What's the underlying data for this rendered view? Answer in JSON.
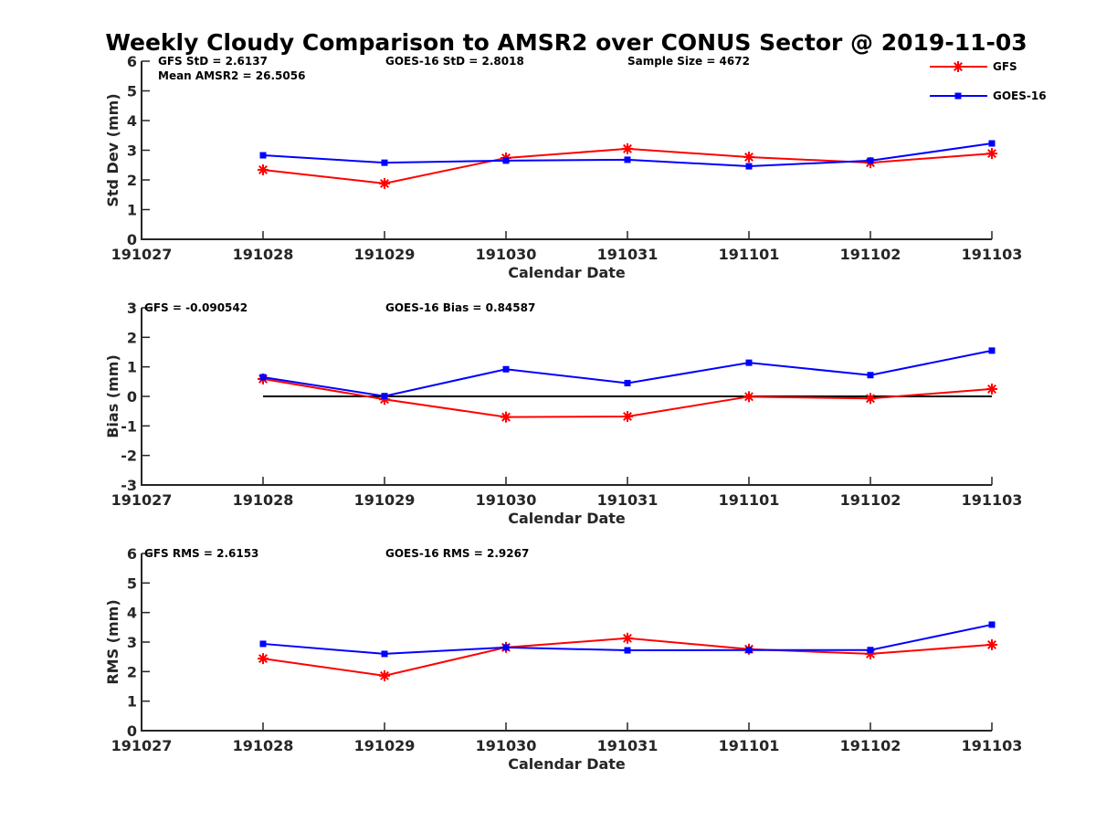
{
  "chart_data": {
    "type": "line",
    "title": "Weekly Cloudy Comparison to AMSR2 over CONUS Sector @ 2019-11-03",
    "x_tick_labels": [
      "191027",
      "191028",
      "191029",
      "191030",
      "191031",
      "191101",
      "191102",
      "191103"
    ],
    "x": [
      "191028",
      "191029",
      "191030",
      "191031",
      "191101",
      "191102",
      "191103"
    ],
    "legend": {
      "placement": "top-right",
      "entries": [
        {
          "name": "GFS",
          "color": "#ff0000",
          "marker": "asterisk"
        },
        {
          "name": "GOES-16",
          "color": "#0000ff",
          "marker": "square"
        }
      ]
    },
    "panels": [
      {
        "id": "stddev",
        "xlabel": "Calendar Date",
        "ylabel": "Std Dev (mm)",
        "ylim": [
          0,
          6
        ],
        "yticks": [
          0,
          1,
          2,
          3,
          4,
          5,
          6
        ],
        "zero_line": false,
        "annotations": [
          {
            "text": "GFS StD = 2.6137",
            "pos": "top-left"
          },
          {
            "text": "Mean AMSR2 = 26.5056",
            "pos": "top-left-line2"
          },
          {
            "text": "GOES-16 StD = 2.8018",
            "pos": "top-center"
          },
          {
            "text": "Sample Size = 4672",
            "pos": "top-right"
          }
        ],
        "series": [
          {
            "name": "GFS",
            "values": [
              2.34,
              1.88,
              2.74,
              3.05,
              2.77,
              2.58,
              2.89
            ]
          },
          {
            "name": "GOES-16",
            "values": [
              2.83,
              2.58,
              2.65,
              2.68,
              2.46,
              2.65,
              3.23
            ]
          }
        ]
      },
      {
        "id": "bias",
        "xlabel": "Calendar Date",
        "ylabel": "Bias (mm)",
        "ylim": [
          -3,
          3
        ],
        "yticks": [
          -3,
          -2,
          -1,
          0,
          1,
          2,
          3
        ],
        "zero_line": true,
        "annotations": [
          {
            "text": "GFS = -0.090542",
            "pos": "top-left"
          },
          {
            "text": "GOES-16 Bias  = 0.84587",
            "pos": "top-center"
          }
        ],
        "series": [
          {
            "name": "GFS",
            "values": [
              0.59,
              -0.1,
              -0.7,
              -0.68,
              -0.01,
              -0.07,
              0.25
            ]
          },
          {
            "name": "GOES-16",
            "values": [
              0.65,
              0.01,
              0.92,
              0.45,
              1.14,
              0.72,
              1.55
            ]
          }
        ]
      },
      {
        "id": "rms",
        "xlabel": "Calendar Date",
        "ylabel": "RMS (mm)",
        "ylim": [
          0,
          6
        ],
        "yticks": [
          0,
          1,
          2,
          3,
          4,
          5,
          6
        ],
        "zero_line": false,
        "annotations": [
          {
            "text": "GFS RMS = 2.6153",
            "pos": "top-left"
          },
          {
            "text": "GOES-16 RMS = 2.9267",
            "pos": "top-center"
          }
        ],
        "series": [
          {
            "name": "GFS",
            "values": [
              2.44,
              1.86,
              2.82,
              3.13,
              2.76,
              2.6,
              2.91
            ]
          },
          {
            "name": "GOES-16",
            "values": [
              2.94,
              2.6,
              2.82,
              2.72,
              2.73,
              2.73,
              3.59
            ]
          }
        ]
      }
    ]
  }
}
